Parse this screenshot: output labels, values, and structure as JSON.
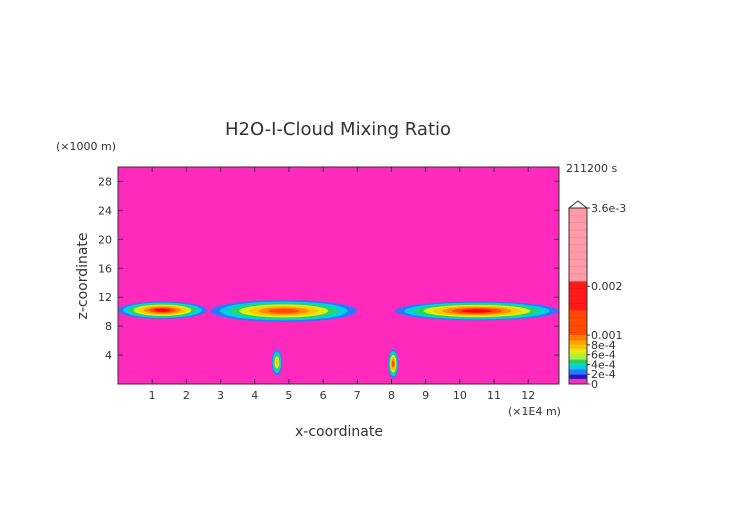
{
  "chart_data": {
    "type": "heatmap",
    "title": "H2O-I-Cloud Mixing Ratio",
    "xlabel": "x-coordinate",
    "ylabel": "z-coordinate",
    "x_unit": "(×1E4 m)",
    "y_unit": "(×1000 m)",
    "time_label": "211200 s",
    "xlim": [
      0,
      12.9
    ],
    "ylim": [
      0,
      30
    ],
    "x_ticks": [
      1,
      2,
      3,
      4,
      5,
      6,
      7,
      8,
      9,
      10,
      11,
      12
    ],
    "y_ticks": [
      4,
      8,
      12,
      16,
      20,
      24,
      28
    ],
    "background_color": "#ff29bd",
    "colorbar": {
      "min": 0,
      "max": 0.0036,
      "labels": [
        {
          "text": "3.6e-3",
          "value": 0.0036
        },
        {
          "text": "0.002",
          "value": 0.002
        },
        {
          "text": "0.001",
          "value": 0.001
        },
        {
          "text": "8e-4",
          "value": 0.0008
        },
        {
          "text": "6e-4",
          "value": 0.0006
        },
        {
          "text": "4e-4",
          "value": 0.0004
        },
        {
          "text": "2e-4",
          "value": 0.0002
        },
        {
          "text": "0",
          "value": 0
        }
      ],
      "colors": [
        "#ff29bd",
        "#1e1ecc",
        "#2b78ff",
        "#00d0e6",
        "#22d66e",
        "#dcf016",
        "#ffc800",
        "#ff8c00",
        "#ff4a00",
        "#ff0000",
        "#ff8a96"
      ]
    },
    "features": [
      {
        "kind": "layer",
        "x": [
          0.0,
          2.6
        ],
        "z": [
          9.0,
          11.4
        ],
        "peak": 0.0009
      },
      {
        "kind": "layer",
        "x": [
          2.7,
          7.0
        ],
        "z": [
          8.6,
          11.6
        ],
        "peak": 0.0008
      },
      {
        "kind": "layer",
        "x": [
          8.1,
          12.9
        ],
        "z": [
          8.8,
          11.4
        ],
        "peak": 0.0009
      },
      {
        "kind": "column",
        "x": [
          4.5,
          4.8
        ],
        "z": [
          1.2,
          4.8
        ],
        "peak": 0.0006
      },
      {
        "kind": "column",
        "x": [
          7.9,
          8.2
        ],
        "z": [
          0.8,
          4.8
        ],
        "peak": 0.0008
      }
    ]
  }
}
